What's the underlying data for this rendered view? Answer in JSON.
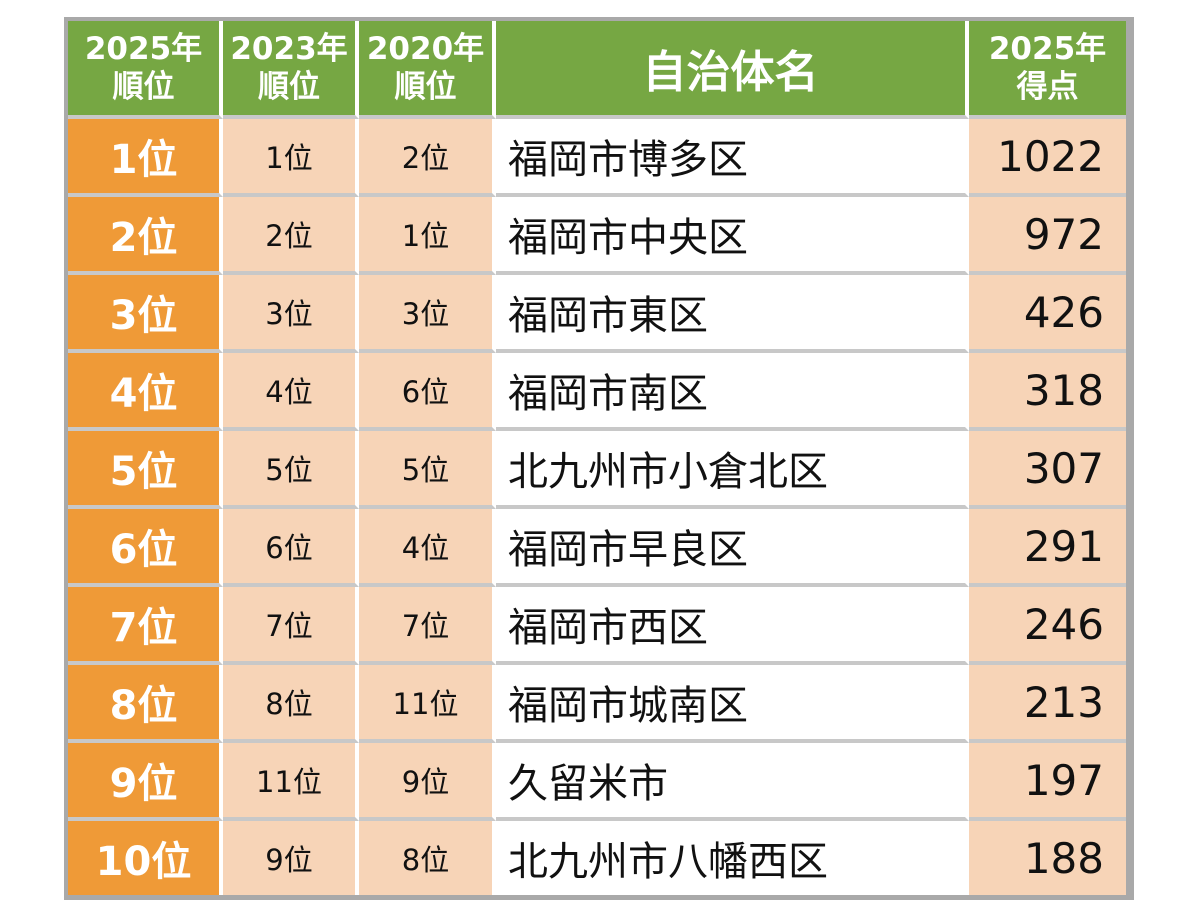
{
  "headers": {
    "rank_2025": [
      "2025年",
      "順位"
    ],
    "rank_2023": [
      "2023年",
      "順位"
    ],
    "rank_2020": [
      "2020年",
      "順位"
    ],
    "municipality": "自治体名",
    "score_2025": [
      "2025年",
      "得点"
    ]
  },
  "rows": [
    {
      "rank_2025": "1位",
      "rank_2023": "1位",
      "rank_2020": "2位",
      "name": "福岡市博多区",
      "score": "1022"
    },
    {
      "rank_2025": "2位",
      "rank_2023": "2位",
      "rank_2020": "1位",
      "name": "福岡市中央区",
      "score": "972"
    },
    {
      "rank_2025": "3位",
      "rank_2023": "3位",
      "rank_2020": "3位",
      "name": "福岡市東区",
      "score": "426"
    },
    {
      "rank_2025": "4位",
      "rank_2023": "4位",
      "rank_2020": "6位",
      "name": "福岡市南区",
      "score": "318"
    },
    {
      "rank_2025": "5位",
      "rank_2023": "5位",
      "rank_2020": "5位",
      "name": "北九州市小倉北区",
      "score": "307"
    },
    {
      "rank_2025": "6位",
      "rank_2023": "6位",
      "rank_2020": "4位",
      "name": "福岡市早良区",
      "score": "291"
    },
    {
      "rank_2025": "7位",
      "rank_2023": "7位",
      "rank_2020": "7位",
      "name": "福岡市西区",
      "score": "246"
    },
    {
      "rank_2025": "8位",
      "rank_2023": "8位",
      "rank_2020": "11位",
      "name": "福岡市城南区",
      "score": "213"
    },
    {
      "rank_2025": "9位",
      "rank_2023": "11位",
      "rank_2020": "9位",
      "name": "久留米市",
      "score": "197"
    },
    {
      "rank_2025": "10位",
      "rank_2023": "9位",
      "rank_2020": "8位",
      "name": "北九州市八幡西区",
      "score": "188"
    }
  ],
  "colors": {
    "header_green": "#76a743",
    "rank_orange": "#ef9a37",
    "light_peach": "#f7d4b7",
    "frame_gray": "#a9a9a9"
  }
}
